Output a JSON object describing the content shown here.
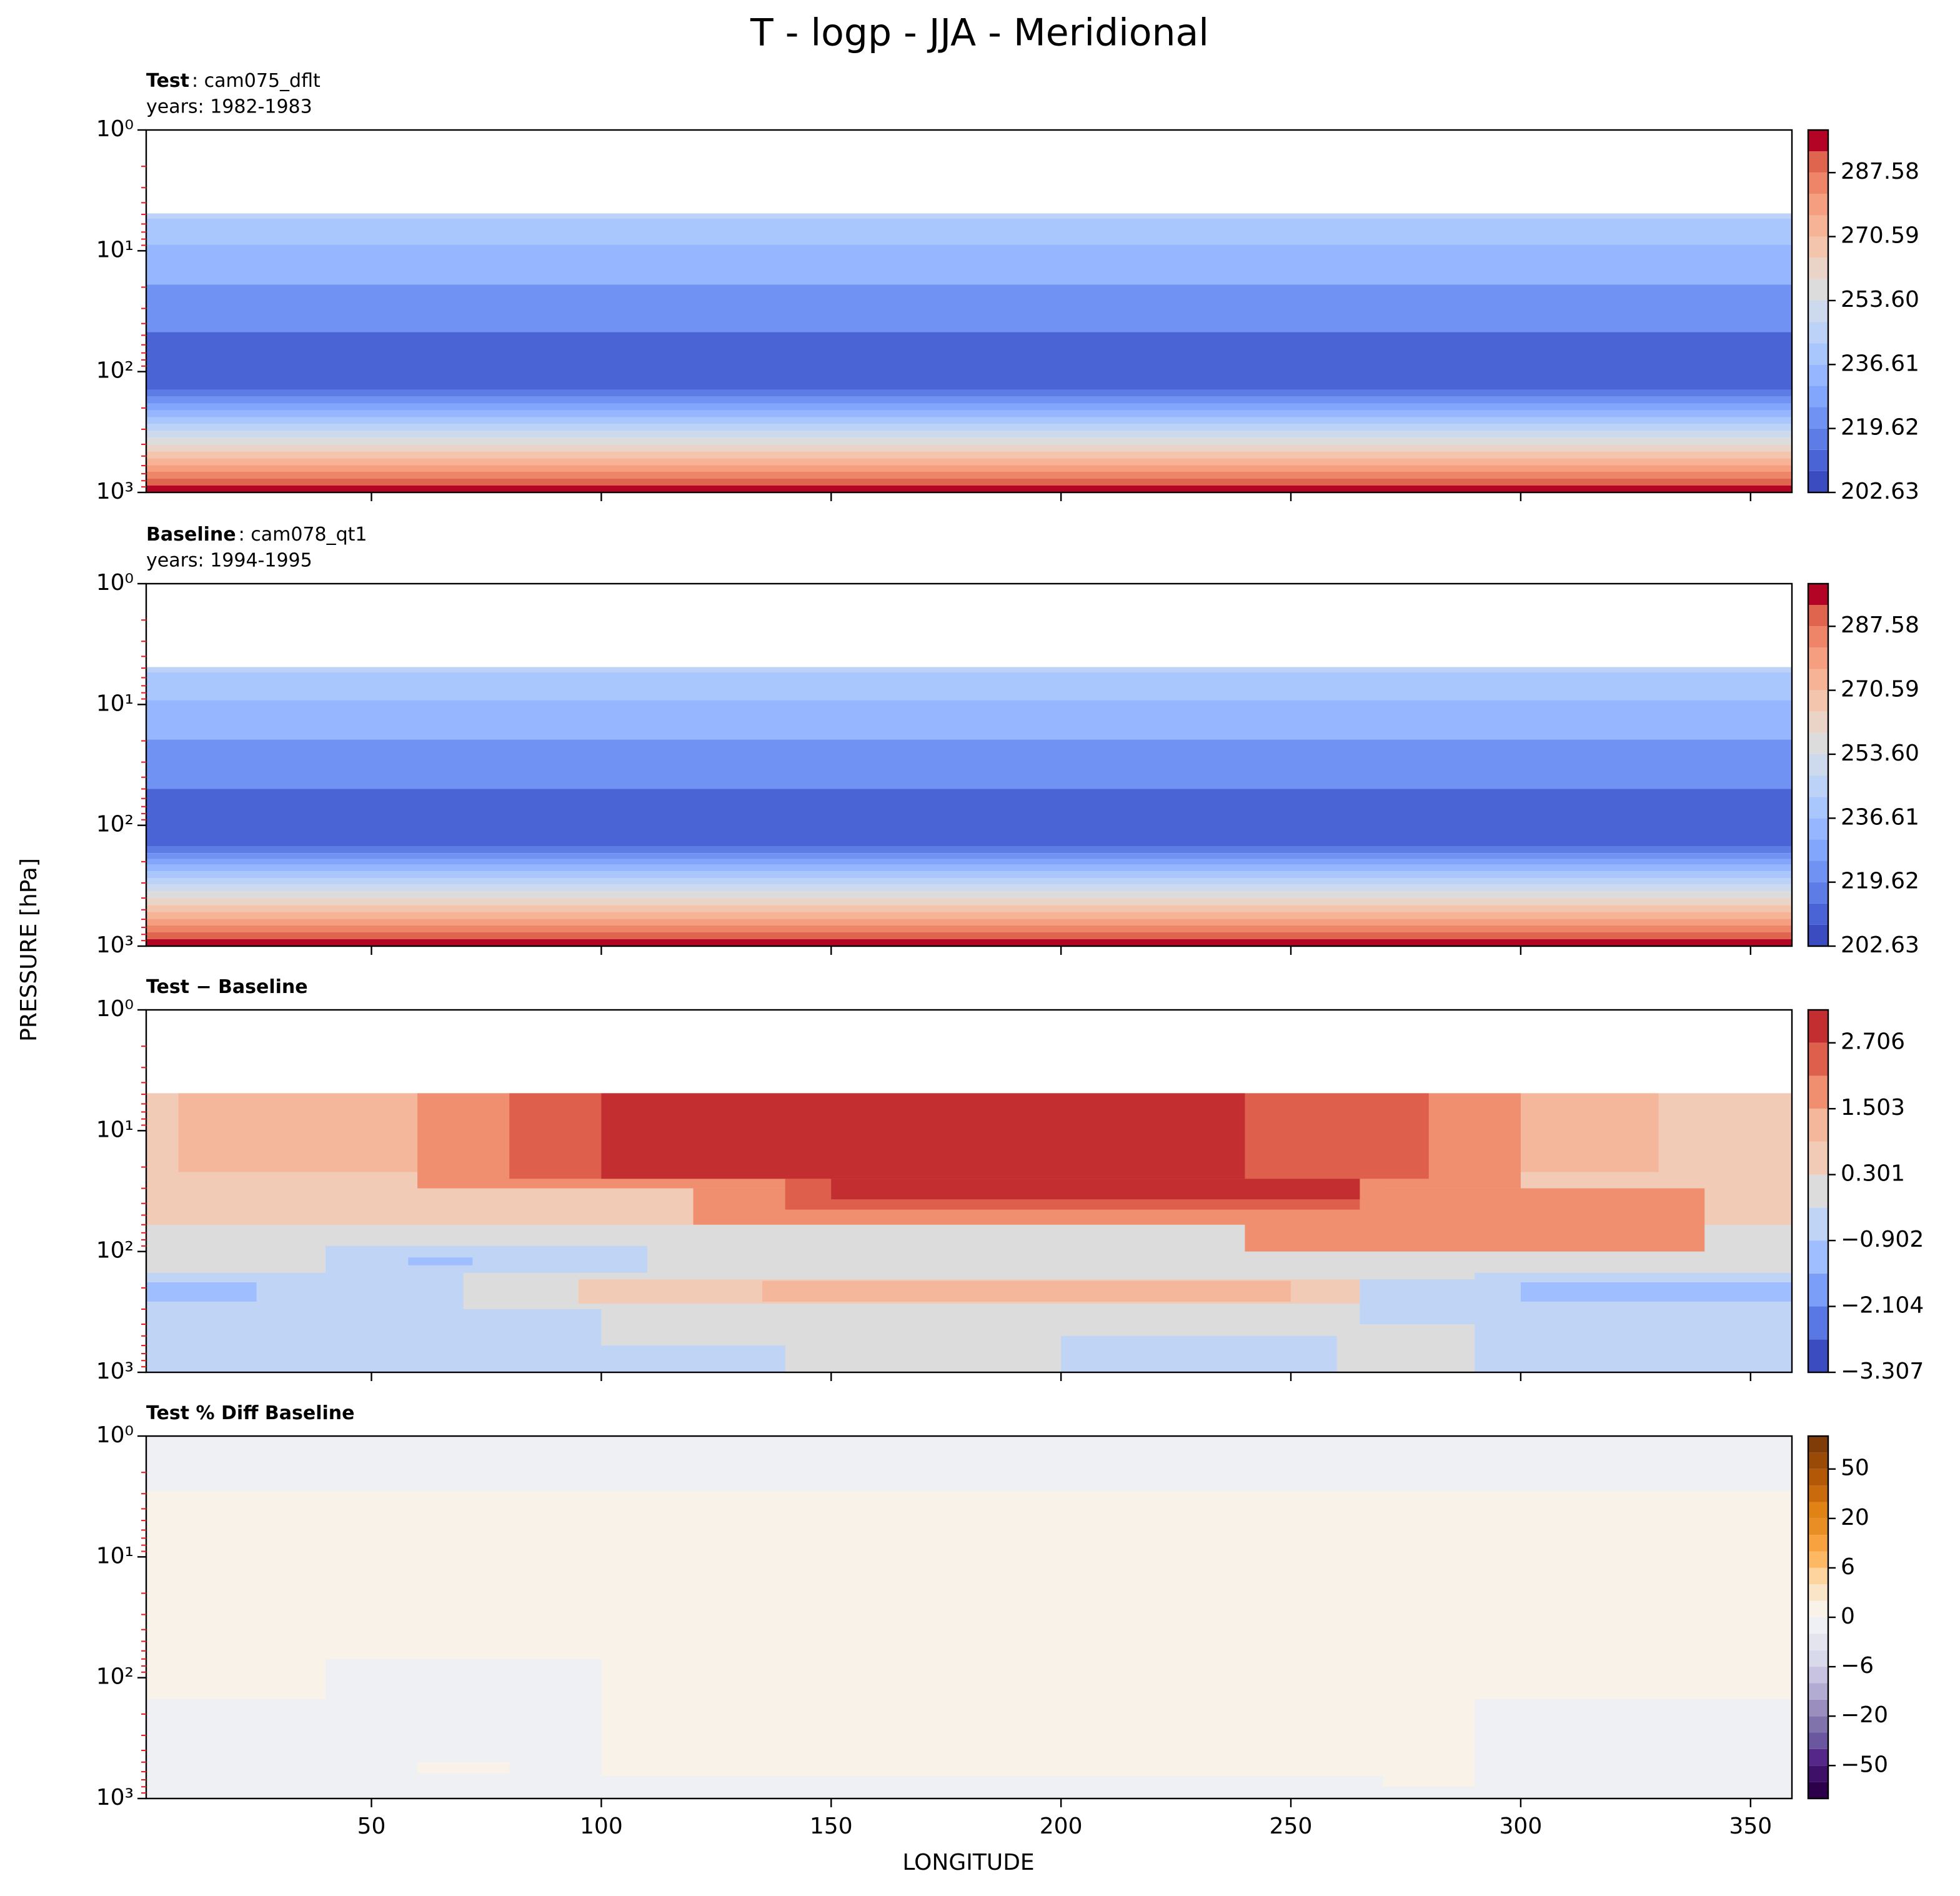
{
  "figure": {
    "title": "T - logp - JJA - Meridional",
    "xlabel": "LONGITUDE",
    "ylabel": "PRESSURE [hPa]"
  },
  "chart_data": [
    {
      "type": "contour",
      "title": "Test",
      "case": ": cam075_dflt",
      "years": "years: 1982-1983",
      "xlim": [
        1,
        359
      ],
      "xticks": [
        50,
        100,
        150,
        200,
        250,
        300,
        350
      ],
      "xticklabels": false,
      "ylim": [
        1000,
        1
      ],
      "log_y": true,
      "yticks": [
        {
          "value": 1,
          "label": "10⁰"
        },
        {
          "value": 10,
          "label": "10¹"
        },
        {
          "value": 100,
          "label": "10²"
        },
        {
          "value": 1000,
          "label": "10³"
        }
      ],
      "levels": [
        202.63,
        208.29,
        213.96,
        219.62,
        225.28,
        230.95,
        236.61,
        242.27,
        247.94,
        253.6,
        259.26,
        264.93,
        270.59,
        276.25,
        281.92,
        287.58,
        293.24,
        298.91
      ],
      "colors": [
        "#3b4cc0",
        "#4b64d5",
        "#5d7ce6",
        "#7093f3",
        "#82a6fb",
        "#96b7ff",
        "#a9c6fd",
        "#bcd2f7",
        "#cdd9ec",
        "#dddcdc",
        "#ead4c8",
        "#f4c5ad",
        "#f7b396",
        "#f59e80",
        "#ee8468",
        "#e0654f",
        "#b40426"
      ],
      "cticks": [
        202.63,
        219.62,
        236.61,
        {
          "value": 253.6,
          "label": "253.60"
        },
        270.59,
        287.58
      ],
      "field": [
        {
          "x": [
            1,
            359
          ],
          "p": [
            4.9,
            5.4
          ],
          "value": 245.1
        },
        {
          "x": [
            1,
            359
          ],
          "p": [
            5.4,
            8.9
          ],
          "value": 239.4
        },
        {
          "x": [
            1,
            359
          ],
          "p": [
            8.9,
            19
          ],
          "value": 233.8
        },
        {
          "x": [
            1,
            359
          ],
          "p": [
            19,
            47
          ],
          "value": 222.5
        },
        {
          "x": [
            1,
            359
          ],
          "p": [
            47,
            141
          ],
          "value": 211.1
        },
        {
          "x": [
            1,
            359
          ],
          "p": [
            141,
            161
          ],
          "value": 216.8
        },
        {
          "x": [
            1,
            359
          ],
          "p": [
            161,
            184
          ],
          "value": 222.5
        },
        {
          "x": [
            1,
            359
          ],
          "p": [
            184,
            209
          ],
          "value": 228.1
        },
        {
          "x": [
            1,
            359
          ],
          "p": [
            209,
            238
          ],
          "value": 233.8
        },
        {
          "x": [
            1,
            359
          ],
          "p": [
            238,
            272
          ],
          "value": 239.4
        },
        {
          "x": [
            1,
            359
          ],
          "p": [
            272,
            309
          ],
          "value": 245.1
        },
        {
          "x": [
            1,
            359
          ],
          "p": [
            309,
            352
          ],
          "value": 250.8
        },
        {
          "x": [
            1,
            359
          ],
          "p": [
            352,
            402
          ],
          "value": 256.4
        },
        {
          "x": [
            1,
            359
          ],
          "p": [
            402,
            457
          ],
          "value": 262.1
        },
        {
          "x": [
            1,
            359
          ],
          "p": [
            457,
            521
          ],
          "value": 267.8
        },
        {
          "x": [
            1,
            359
          ],
          "p": [
            521,
            594
          ],
          "value": 273.4
        },
        {
          "x": [
            1,
            359
          ],
          "p": [
            594,
            675
          ],
          "value": 279.1
        },
        {
          "x": [
            1,
            359
          ],
          "p": [
            675,
            769
          ],
          "value": 284.8
        },
        {
          "x": [
            1,
            359
          ],
          "p": [
            769,
            877
          ],
          "value": 290.4
        },
        {
          "x": [
            1,
            359
          ],
          "p": [
            877,
            1000
          ],
          "value": 296.1
        }
      ]
    },
    {
      "type": "contour",
      "title": "Baseline",
      "case": ": cam078_qt1",
      "years": "years: 1994-1995",
      "xlim": [
        1,
        359
      ],
      "xticks": [
        50,
        100,
        150,
        200,
        250,
        300,
        350
      ],
      "xticklabels": false,
      "ylim": [
        1000,
        1
      ],
      "log_y": true,
      "yticks": [
        {
          "value": 1,
          "label": "10⁰"
        },
        {
          "value": 10,
          "label": "10¹"
        },
        {
          "value": 100,
          "label": "10²"
        },
        {
          "value": 1000,
          "label": "10³"
        }
      ],
      "levels": [
        202.63,
        208.29,
        213.96,
        219.62,
        225.28,
        230.95,
        236.61,
        242.27,
        247.94,
        253.6,
        259.26,
        264.93,
        270.59,
        276.25,
        281.92,
        287.58,
        293.24,
        298.91
      ],
      "colors": [
        "#3b4cc0",
        "#4b64d5",
        "#5d7ce6",
        "#7093f3",
        "#82a6fb",
        "#96b7ff",
        "#a9c6fd",
        "#bcd2f7",
        "#cdd9ec",
        "#dddcdc",
        "#ead4c8",
        "#f4c5ad",
        "#f7b396",
        "#f59e80",
        "#ee8468",
        "#e0654f",
        "#b40426"
      ],
      "cticks": [
        202.63,
        219.62,
        236.61,
        {
          "value": 253.6,
          "label": "253.60"
        },
        270.59,
        287.58
      ],
      "field": [
        {
          "x": [
            1,
            359
          ],
          "p": [
            4.9,
            5.4
          ],
          "value": 245.1
        },
        {
          "x": [
            1,
            359
          ],
          "p": [
            5.4,
            9.2
          ],
          "value": 239.4
        },
        {
          "x": [
            1,
            359
          ],
          "p": [
            9.2,
            19.5
          ],
          "value": 233.8
        },
        {
          "x": [
            1,
            359
          ],
          "p": [
            19.5,
            50
          ],
          "value": 222.5
        },
        {
          "x": [
            1,
            359
          ],
          "p": [
            50,
            150
          ],
          "value": 211.1
        },
        {
          "x": [
            1,
            359
          ],
          "p": [
            150,
            170
          ],
          "value": 216.8
        },
        {
          "x": [
            1,
            359
          ],
          "p": [
            170,
            190
          ],
          "value": 222.5
        },
        {
          "x": [
            1,
            359
          ],
          "p": [
            190,
            212
          ],
          "value": 228.1
        },
        {
          "x": [
            1,
            359
          ],
          "p": [
            212,
            240
          ],
          "value": 233.8
        },
        {
          "x": [
            1,
            359
          ],
          "p": [
            240,
            273
          ],
          "value": 239.4
        },
        {
          "x": [
            1,
            359
          ],
          "p": [
            273,
            310
          ],
          "value": 245.1
        },
        {
          "x": [
            1,
            359
          ],
          "p": [
            310,
            352
          ],
          "value": 250.8
        },
        {
          "x": [
            1,
            359
          ],
          "p": [
            352,
            402
          ],
          "value": 256.4
        },
        {
          "x": [
            1,
            359
          ],
          "p": [
            402,
            457
          ],
          "value": 262.1
        },
        {
          "x": [
            1,
            359
          ],
          "p": [
            457,
            521
          ],
          "value": 267.8
        },
        {
          "x": [
            1,
            359
          ],
          "p": [
            521,
            594
          ],
          "value": 273.4
        },
        {
          "x": [
            1,
            359
          ],
          "p": [
            594,
            675
          ],
          "value": 279.1
        },
        {
          "x": [
            1,
            359
          ],
          "p": [
            675,
            769
          ],
          "value": 284.8
        },
        {
          "x": [
            1,
            359
          ],
          "p": [
            769,
            877
          ],
          "value": 290.4
        },
        {
          "x": [
            1,
            359
          ],
          "p": [
            877,
            1000
          ],
          "value": 296.1
        }
      ]
    },
    {
      "type": "contour",
      "title": "Test − Baseline",
      "xlim": [
        1,
        359
      ],
      "xticks": [
        50,
        100,
        150,
        200,
        250,
        300,
        350
      ],
      "xticklabels": false,
      "ylim": [
        1000,
        1
      ],
      "log_y": true,
      "yticks": [
        {
          "value": 1,
          "label": "10⁰"
        },
        {
          "value": 10,
          "label": "10¹"
        },
        {
          "value": 100,
          "label": "10²"
        },
        {
          "value": 1000,
          "label": "10³"
        }
      ],
      "levels": [
        -3.307,
        -2.706,
        -2.104,
        -1.503,
        -0.902,
        -0.301,
        0.301,
        0.902,
        1.503,
        2.104,
        2.706,
        3.307
      ],
      "colors": [
        "#3b4cc0",
        "#5a78e4",
        "#7b9ff9",
        "#9ebeff",
        "#c0d4f5",
        "#dddcdc",
        "#f2cbb7",
        "#f5b79b",
        "#f08f70",
        "#de5f4b",
        "#c32e31"
      ],
      "cticks": [
        {
          "value": -3.307,
          "label": "−3.307"
        },
        {
          "value": -2.104,
          "label": "−2.104"
        },
        {
          "value": -0.902,
          "label": "−0.902"
        },
        0.301,
        1.503,
        2.706
      ],
      "field": [
        {
          "x": [
            1,
            359
          ],
          "p": [
            4.9,
            1000
          ],
          "value": 0.0
        },
        {
          "x": [
            1,
            359
          ],
          "p": [
            4.9,
            60
          ],
          "value": 0.6
        },
        {
          "x": [
            8,
            330
          ],
          "p": [
            4.9,
            22
          ],
          "value": 1.2
        },
        {
          "x": [
            60,
            300
          ],
          "p": [
            4.9,
            30
          ],
          "value": 1.8
        },
        {
          "x": [
            120,
            270
          ],
          "p": [
            30,
            60
          ],
          "value": 1.8
        },
        {
          "x": [
            240,
            340
          ],
          "p": [
            30,
            100
          ],
          "value": 1.8
        },
        {
          "x": [
            80,
            280
          ],
          "p": [
            4.9,
            25
          ],
          "value": 2.4
        },
        {
          "x": [
            140,
            265
          ],
          "p": [
            25,
            45
          ],
          "value": 2.4
        },
        {
          "x": [
            100,
            240
          ],
          "p": [
            4.9,
            25
          ],
          "value": 3.0
        },
        {
          "x": [
            150,
            265
          ],
          "p": [
            25,
            37
          ],
          "value": 3.0
        },
        {
          "x": [
            40,
            110
          ],
          "p": [
            90,
            150
          ],
          "value": -0.6
        },
        {
          "x": [
            1,
            70
          ],
          "p": [
            150,
            1000
          ],
          "value": -0.6
        },
        {
          "x": [
            70,
            100
          ],
          "p": [
            300,
            1000
          ],
          "value": -0.6
        },
        {
          "x": [
            1,
            25
          ],
          "p": [
            180,
            260
          ],
          "value": -1.2
        },
        {
          "x": [
            58,
            72
          ],
          "p": [
            112,
            130
          ],
          "value": -1.2
        },
        {
          "x": [
            265,
            290
          ],
          "p": [
            170,
            400
          ],
          "value": -0.6
        },
        {
          "x": [
            290,
            359
          ],
          "p": [
            150,
            1000
          ],
          "value": -0.6
        },
        {
          "x": [
            300,
            359
          ],
          "p": [
            180,
            260
          ],
          "value": -1.2
        },
        {
          "x": [
            75,
            140
          ],
          "p": [
            600,
            1000
          ],
          "value": -0.6
        },
        {
          "x": [
            200,
            260
          ],
          "p": [
            500,
            1000
          ],
          "value": -0.6
        },
        {
          "x": [
            95,
            265
          ],
          "p": [
            170,
            270
          ],
          "value": 0.6
        },
        {
          "x": [
            135,
            250
          ],
          "p": [
            175,
            260
          ],
          "value": 1.2
        }
      ]
    },
    {
      "type": "contour",
      "title": "Test % Diff Baseline",
      "xlim": [
        1,
        359
      ],
      "xticks": [
        50,
        100,
        150,
        200,
        250,
        300,
        350
      ],
      "xticklabels": true,
      "ylim": [
        1000,
        1
      ],
      "log_y": true,
      "yticks": [
        {
          "value": 1,
          "label": "10⁰"
        },
        {
          "value": 10,
          "label": "10¹"
        },
        {
          "value": 100,
          "label": "10²"
        },
        {
          "value": 1000,
          "label": "10³"
        }
      ],
      "levels": [
        -100,
        -75,
        -50,
        -40,
        -30,
        -20,
        -15,
        -10,
        -6,
        -4,
        -2,
        0,
        2,
        4,
        6,
        10,
        15,
        20,
        30,
        40,
        50,
        75,
        100
      ],
      "colors": [
        "#2d004b",
        "#3e1068",
        "#542788",
        "#6b56a0",
        "#8073ac",
        "#9a8ebf",
        "#b2abd2",
        "#c8c3e0",
        "#d8daeb",
        "#e4e4ef",
        "#eff0f4",
        "#f8f2e8",
        "#fbe5c8",
        "#fdd49e",
        "#fdb863",
        "#f7a23f",
        "#e98e24",
        "#e08214",
        "#c96a0c",
        "#b35806",
        "#9a4a07",
        "#7f3b08"
      ],
      "cticks": [
        {
          "value": -50,
          "label": "−50"
        },
        {
          "value": -20,
          "label": "−20"
        },
        {
          "value": -6,
          "label": "−6"
        },
        0,
        6,
        20,
        50
      ],
      "field": [
        {
          "x": [
            1,
            359
          ],
          "p": [
            1,
            1000
          ],
          "value": -1
        },
        {
          "x": [
            1,
            359
          ],
          "p": [
            2.85,
            150
          ],
          "value": 1
        },
        {
          "x": [
            100,
            270
          ],
          "p": [
            150,
            650
          ],
          "value": 1
        },
        {
          "x": [
            270,
            290
          ],
          "p": [
            150,
            800
          ],
          "value": 1
        },
        {
          "x": [
            60,
            80
          ],
          "p": [
            500,
            620
          ],
          "value": 1
        },
        {
          "x": [
            40,
            100
          ],
          "p": [
            70,
            150
          ],
          "value": -1
        }
      ]
    }
  ]
}
